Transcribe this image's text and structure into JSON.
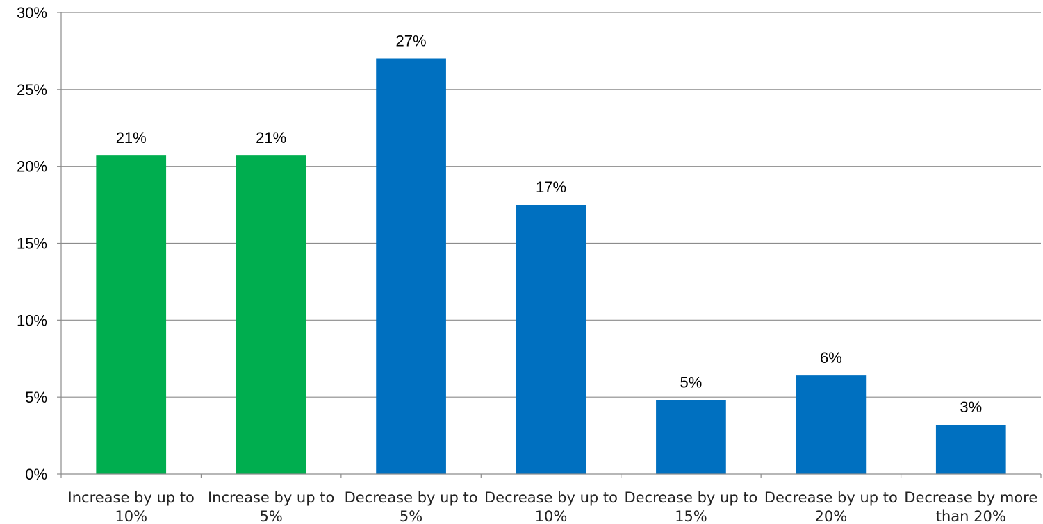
{
  "chart_data": {
    "type": "bar",
    "title": "",
    "xlabel": "",
    "ylabel": "",
    "ylim": [
      0,
      30
    ],
    "yticks": [
      "0%",
      "5%",
      "10%",
      "15%",
      "20%",
      "25%",
      "30%"
    ],
    "grid": true,
    "legend": "none",
    "categories": [
      [
        "Increase by up to",
        "10%"
      ],
      [
        "Increase by up to",
        "5%"
      ],
      [
        "Decrease by up to",
        "5%"
      ],
      [
        "Decrease by up to",
        "10%"
      ],
      [
        "Decrease by up to",
        "15%"
      ],
      [
        "Decrease by up to",
        "20%"
      ],
      [
        "Decrease by more",
        "than 20%"
      ]
    ],
    "values": [
      20.7,
      20.7,
      27.0,
      17.5,
      4.8,
      6.4,
      3.2
    ],
    "data_labels": [
      "21%",
      "21%",
      "27%",
      "17%",
      "5%",
      "6%",
      "3%"
    ],
    "bar_colors": [
      "#00ae4f",
      "#00ae4f",
      "#0070c0",
      "#0070c0",
      "#0070c0",
      "#0070c0",
      "#0070c0"
    ],
    "grid_color": "#8c8c8c",
    "axis_color": "#8c8c8c"
  }
}
